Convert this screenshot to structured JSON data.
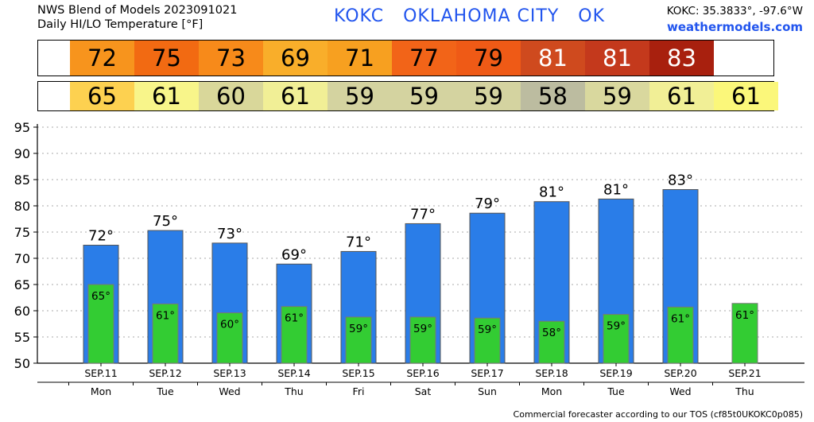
{
  "header": {
    "line1": "NWS Blend of Models 2023091021",
    "line2": "Daily HI/LO Temperature [°F]",
    "station_title": "KOKC   OKLAHOMA CITY   OK",
    "coords": "KOKC: 35.3833°, -97.6°W",
    "site": "weathermodels.com"
  },
  "footer": "Commercial forecaster according to our TOS (cf85t0UKOKC0p085)",
  "hi_strip": [
    {
      "value": "72",
      "color": "#f7941d"
    },
    {
      "value": "75",
      "color": "#f26a12"
    },
    {
      "value": "73",
      "color": "#f78a1a"
    },
    {
      "value": "69",
      "color": "#f9ae2a"
    },
    {
      "value": "71",
      "color": "#f7a020"
    },
    {
      "value": "77",
      "color": "#f26418"
    },
    {
      "value": "79",
      "color": "#ef5a16"
    },
    {
      "value": "81",
      "color": "#cf4a1e"
    },
    {
      "value": "81",
      "color": "#c4391c"
    },
    {
      "value": "83",
      "color": "#a8200e"
    }
  ],
  "lo_strip": [
    {
      "value": "65",
      "color": "#fdd150"
    },
    {
      "value": "61",
      "color": "#f8f58a"
    },
    {
      "value": "60",
      "color": "#d9d79a"
    },
    {
      "value": "61",
      "color": "#f1ef96"
    },
    {
      "value": "59",
      "color": "#d4d3a0"
    },
    {
      "value": "59",
      "color": "#d4d3a0"
    },
    {
      "value": "59",
      "color": "#d4d3a0"
    },
    {
      "value": "58",
      "color": "#bcbca0"
    },
    {
      "value": "59",
      "color": "#d9d89e"
    },
    {
      "value": "61",
      "color": "#f1ef96"
    },
    {
      "value": "61",
      "color": "#fbf77a"
    }
  ],
  "chart_data": {
    "type": "bar",
    "categories": [
      "SEP.11",
      "SEP.12",
      "SEP.13",
      "SEP.14",
      "SEP.15",
      "SEP.16",
      "SEP.17",
      "SEP.18",
      "SEP.19",
      "SEP.20",
      "SEP.21"
    ],
    "day_names": [
      "Mon",
      "Tue",
      "Wed",
      "Thu",
      "Fri",
      "Sat",
      "Sun",
      "Mon",
      "Tue",
      "Wed",
      "Thu"
    ],
    "series": [
      {
        "values": [
          72.5,
          75.3,
          72.9,
          68.9,
          71.3,
          76.6,
          78.6,
          80.8,
          81.3,
          83.1,
          null
        ],
        "labels": [
          "72°",
          "75°",
          "73°",
          "69°",
          "71°",
          "77°",
          "79°",
          "81°",
          "81°",
          "83°",
          ""
        ],
        "color": "#2a7de8"
      },
      {
        "values": [
          65.0,
          61.3,
          59.6,
          60.8,
          58.8,
          58.8,
          58.6,
          58.0,
          59.3,
          60.7,
          61.4
        ],
        "labels": [
          "65°",
          "61°",
          "60°",
          "61°",
          "59°",
          "59°",
          "59°",
          "58°",
          "59°",
          "61°",
          "61°"
        ],
        "color": "#33cc33"
      }
    ],
    "y_ticks": [
      50,
      55,
      60,
      65,
      70,
      75,
      80,
      85,
      90,
      95
    ],
    "ylim": [
      50,
      95
    ],
    "grid": true
  }
}
